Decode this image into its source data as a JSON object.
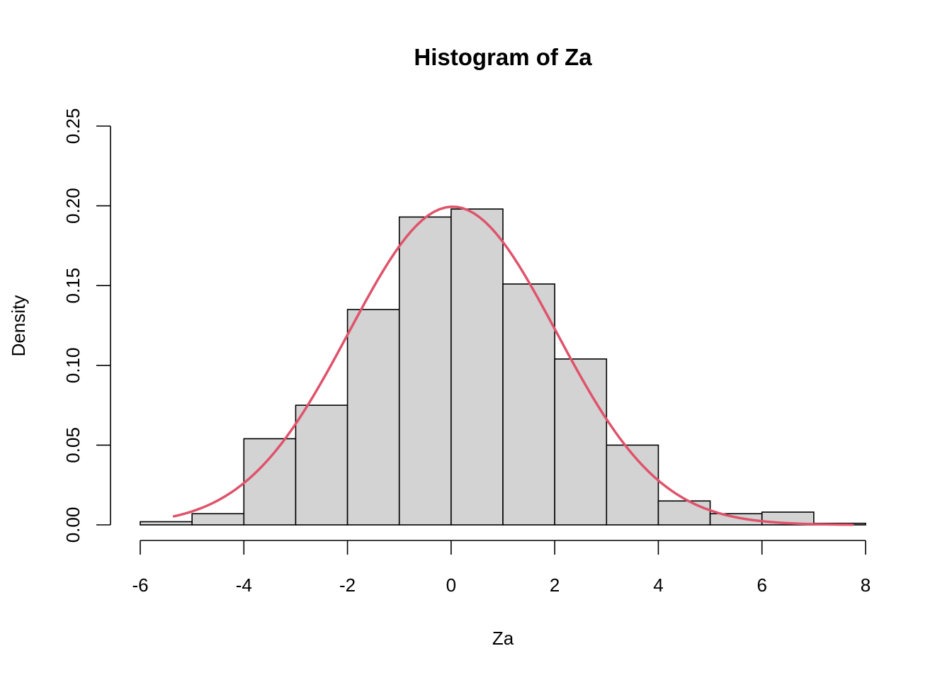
{
  "chart_data": {
    "type": "bar",
    "title": "Histogram of Za",
    "xlabel": "Za",
    "ylabel": "Density",
    "xlim": [
      -6,
      8
    ],
    "ylim": [
      0,
      0.25
    ],
    "x_ticks": [
      -6,
      -4,
      -2,
      0,
      2,
      4,
      6,
      8
    ],
    "x_tick_labels": [
      "-6",
      "-4",
      "-2",
      "0",
      "2",
      "4",
      "6",
      "8"
    ],
    "y_ticks": [
      0,
      0.05,
      0.1,
      0.15,
      0.2,
      0.25
    ],
    "y_tick_labels": [
      "0.00",
      "0.05",
      "0.10",
      "0.15",
      "0.20",
      "0.25"
    ],
    "bins": [
      {
        "x0": -6,
        "x1": -5,
        "density": 0.002
      },
      {
        "x0": -5,
        "x1": -4,
        "density": 0.007
      },
      {
        "x0": -4,
        "x1": -3,
        "density": 0.054
      },
      {
        "x0": -3,
        "x1": -2,
        "density": 0.075
      },
      {
        "x0": -2,
        "x1": -1,
        "density": 0.135
      },
      {
        "x0": -1,
        "x1": 0,
        "density": 0.193
      },
      {
        "x0": 0,
        "x1": 1,
        "density": 0.198
      },
      {
        "x0": 1,
        "x1": 2,
        "density": 0.151
      },
      {
        "x0": 2,
        "x1": 3,
        "density": 0.104
      },
      {
        "x0": 3,
        "x1": 4,
        "density": 0.05
      },
      {
        "x0": 4,
        "x1": 5,
        "density": 0.015
      },
      {
        "x0": 5,
        "x1": 6,
        "density": 0.007
      },
      {
        "x0": 6,
        "x1": 7,
        "density": 0.008
      },
      {
        "x0": 7,
        "x1": 8,
        "density": 0.001
      }
    ],
    "density_curve": {
      "color": "#DF536B",
      "x_range": [
        -5.35,
        7.75
      ],
      "mean": 0.03,
      "sd": 2.0
    },
    "bar_fill": "#d3d3d3",
    "grid": false,
    "legend": "none"
  }
}
